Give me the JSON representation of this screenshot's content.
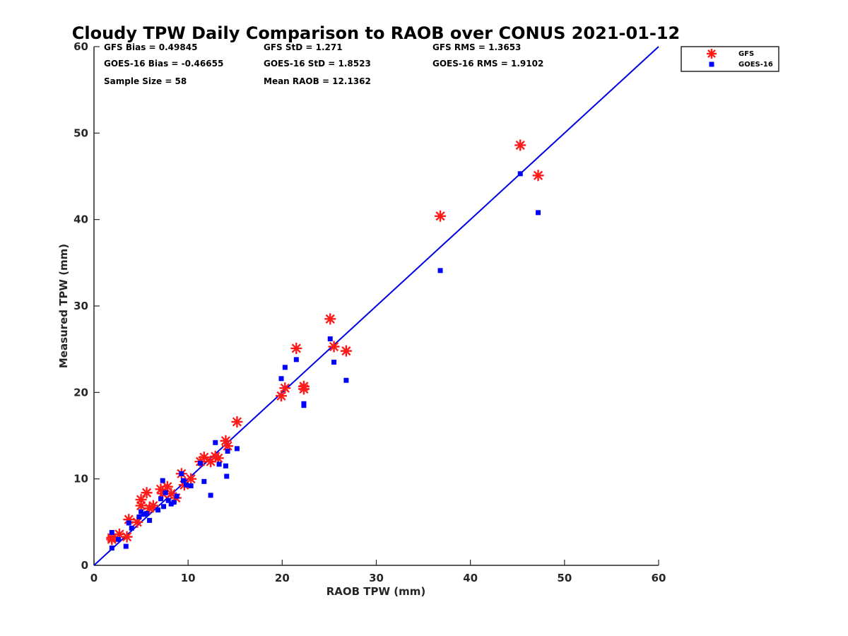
{
  "chart_data": {
    "type": "scatter",
    "title": "Cloudy TPW Daily Comparison to RAOB over CONUS 2021-01-12",
    "xlabel": "RAOB TPW (mm)",
    "ylabel": "Measured TPW (mm)",
    "xlim": [
      0,
      60
    ],
    "ylim": [
      0,
      60
    ],
    "xticks": [
      "0",
      "10",
      "20",
      "30",
      "40",
      "50",
      "60"
    ],
    "yticks": [
      "0",
      "10",
      "20",
      "30",
      "40",
      "50",
      "60"
    ],
    "grid": false,
    "legend_position": "top-right outside plot",
    "reference_line": {
      "type": "one-to-one",
      "color": "#0000e6"
    },
    "stats": {
      "gfs_bias": "GFS Bias = 0.49845",
      "gfs_std": "GFS StD = 1.271",
      "gfs_rms": "GFS RMS = 1.3653",
      "goes_bias": "GOES-16 Bias = -0.46655",
      "goes_std": "GOES-16 StD = 1.8523",
      "goes_rms": "GOES-16 RMS = 1.9102",
      "sample_size": "Sample Size = 58",
      "mean_raob": "Mean RAOB = 12.1362"
    },
    "series": [
      {
        "name": "GFS",
        "marker": "asterisk",
        "color": "#ff1a1a",
        "points": [
          [
            1.9,
            3.0
          ],
          [
            1.9,
            3.2
          ],
          [
            2.7,
            3.6
          ],
          [
            3.5,
            3.3
          ],
          [
            3.7,
            5.3
          ],
          [
            4.6,
            5.0
          ],
          [
            5.0,
            6.9
          ],
          [
            5.0,
            7.6
          ],
          [
            5.6,
            8.4
          ],
          [
            5.9,
            6.6
          ],
          [
            6.3,
            6.9
          ],
          [
            7.1,
            8.8
          ],
          [
            7.3,
            8.3
          ],
          [
            7.8,
            9.1
          ],
          [
            8.2,
            8.3
          ],
          [
            8.7,
            7.8
          ],
          [
            9.3,
            10.6
          ],
          [
            9.6,
            9.3
          ],
          [
            10.3,
            10.0
          ],
          [
            11.3,
            12.0
          ],
          [
            11.7,
            12.5
          ],
          [
            12.4,
            12.0
          ],
          [
            12.9,
            12.6
          ],
          [
            13.2,
            12.4
          ],
          [
            14.0,
            14.4
          ],
          [
            14.2,
            13.8
          ],
          [
            15.2,
            16.6
          ],
          [
            19.9,
            19.6
          ],
          [
            20.3,
            20.5
          ],
          [
            21.5,
            25.1
          ],
          [
            22.3,
            20.4
          ],
          [
            22.3,
            20.7
          ],
          [
            25.1,
            28.5
          ],
          [
            25.5,
            25.3
          ],
          [
            26.8,
            24.8
          ],
          [
            36.8,
            40.4
          ],
          [
            45.3,
            48.6
          ],
          [
            47.2,
            45.1
          ]
        ]
      },
      {
        "name": "GOES-16",
        "marker": "square",
        "color": "#0000ff",
        "points": [
          [
            1.9,
            2.0
          ],
          [
            1.9,
            3.8
          ],
          [
            2.6,
            3.0
          ],
          [
            3.4,
            2.2
          ],
          [
            3.7,
            4.9
          ],
          [
            4.0,
            4.3
          ],
          [
            4.8,
            5.6
          ],
          [
            5.0,
            6.2
          ],
          [
            5.3,
            5.9
          ],
          [
            5.6,
            6.0
          ],
          [
            5.9,
            5.2
          ],
          [
            6.8,
            6.4
          ],
          [
            7.1,
            7.7
          ],
          [
            7.3,
            9.8
          ],
          [
            7.4,
            6.8
          ],
          [
            7.6,
            8.4
          ],
          [
            7.9,
            7.5
          ],
          [
            8.2,
            7.1
          ],
          [
            8.5,
            7.3
          ],
          [
            8.8,
            8.0
          ],
          [
            9.3,
            10.6
          ],
          [
            9.5,
            9.8
          ],
          [
            9.8,
            9.3
          ],
          [
            10.3,
            9.2
          ],
          [
            11.3,
            11.8
          ],
          [
            11.7,
            9.7
          ],
          [
            12.4,
            8.1
          ],
          [
            12.9,
            14.2
          ],
          [
            13.3,
            11.7
          ],
          [
            14.0,
            11.5
          ],
          [
            14.1,
            10.3
          ],
          [
            14.2,
            13.2
          ],
          [
            15.2,
            13.5
          ],
          [
            19.9,
            21.6
          ],
          [
            20.3,
            22.9
          ],
          [
            21.5,
            23.8
          ],
          [
            22.3,
            18.5
          ],
          [
            22.3,
            18.7
          ],
          [
            25.1,
            26.2
          ],
          [
            25.5,
            23.5
          ],
          [
            26.8,
            21.4
          ],
          [
            36.8,
            34.1
          ],
          [
            45.3,
            45.3
          ],
          [
            47.2,
            40.8
          ]
        ]
      }
    ]
  }
}
